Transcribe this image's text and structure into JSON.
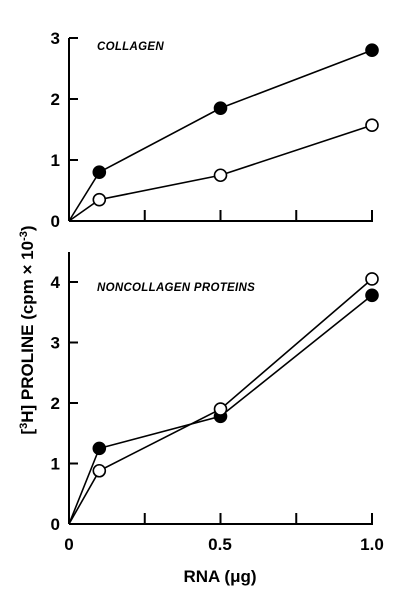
{
  "chart_data": [
    {
      "type": "line",
      "title": "COLLAGEN",
      "x": [
        0,
        0.1,
        0.5,
        1.0
      ],
      "ylim": [
        0,
        3
      ],
      "xlim": [
        0,
        1.0
      ],
      "yticks": [
        "0",
        "1",
        "2",
        "3"
      ],
      "series": [
        {
          "marker": "filled",
          "values": [
            0,
            0.8,
            1.85,
            2.8
          ]
        },
        {
          "marker": "open",
          "values": [
            0,
            0.35,
            0.75,
            1.57
          ]
        }
      ]
    },
    {
      "type": "line",
      "title": "NONCOLLAGEN PROTEINS",
      "x": [
        0,
        0.1,
        0.5,
        1.0
      ],
      "ylim": [
        0,
        4.5
      ],
      "xlim": [
        0,
        1.0
      ],
      "yticks": [
        "0",
        "1",
        "2",
        "3",
        "4"
      ],
      "series": [
        {
          "marker": "filled",
          "values": [
            0,
            1.25,
            1.78,
            3.78
          ]
        },
        {
          "marker": "open",
          "values": [
            0,
            0.88,
            1.9,
            4.05
          ]
        }
      ]
    }
  ],
  "axes": {
    "ylabel_prefix": "[",
    "ylabel_sup": "3",
    "ylabel_mid": "H]",
    "ylabel_main": " PROLINE  (cpm × 10",
    "ylabel_exp": "-3",
    "ylabel_end": ")",
    "xlabel": "RNA (μg)",
    "xticks": [
      "0",
      "0.5",
      "1.0"
    ]
  },
  "colors": {
    "filled_marker": "#000000",
    "open_marker": "#ffffff",
    "line": "#000000"
  }
}
